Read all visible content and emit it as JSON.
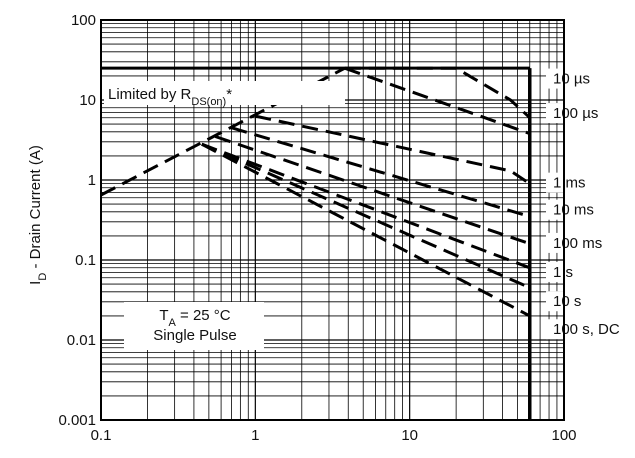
{
  "chart_data": {
    "type": "line",
    "title": "",
    "xlabel": "",
    "ylabel_parts": [
      "I",
      "D",
      " - Drain Current (A)"
    ],
    "x_scale": "log",
    "y_scale": "log",
    "xlim": [
      0.1,
      100
    ],
    "ylim": [
      0.001,
      100
    ],
    "x_ticks": [
      {
        "value": 0.1,
        "label": "0.1"
      },
      {
        "value": 1,
        "label": "1"
      },
      {
        "value": 10,
        "label": "10"
      },
      {
        "value": 100,
        "label": "100"
      }
    ],
    "y_ticks": [
      {
        "value": 100,
        "label": "100"
      },
      {
        "value": 10,
        "label": "10"
      },
      {
        "value": 1,
        "label": "1"
      },
      {
        "value": 0.1,
        "label": "0.1"
      },
      {
        "value": 0.01,
        "label": "0.01"
      },
      {
        "value": 0.001,
        "label": "0.001"
      }
    ],
    "grid": true,
    "limits": {
      "current_limit_A": 25,
      "voltage_limit_V": 60
    },
    "rds_line": [
      [
        0.1,
        0.65
      ],
      [
        3.8,
        25
      ]
    ],
    "series": [
      {
        "name": "10 µs",
        "points": [
          [
            3.8,
            25
          ],
          [
            20,
            25
          ],
          [
            45,
            10
          ],
          [
            60,
            6
          ]
        ]
      },
      {
        "name": "100 µs",
        "points": [
          [
            3.8,
            25
          ],
          [
            60,
            3.8
          ]
        ]
      },
      {
        "name": "1 ms",
        "points": [
          [
            1.0,
            6.3
          ],
          [
            45,
            1.3
          ],
          [
            60,
            0.9
          ]
        ]
      },
      {
        "name": "10 ms",
        "points": [
          [
            0.7,
            4.5
          ],
          [
            60,
            0.35
          ]
        ]
      },
      {
        "name": "100 ms",
        "points": [
          [
            0.55,
            3.5
          ],
          [
            60,
            0.16
          ]
        ]
      },
      {
        "name": "1 s",
        "points": [
          [
            0.45,
            2.8
          ],
          [
            60,
            0.08
          ]
        ]
      },
      {
        "name": "10 s",
        "points": [
          [
            0.45,
            2.8
          ],
          [
            60,
            0.045
          ]
        ]
      },
      {
        "name": "100 s, DC",
        "points": [
          [
            0.45,
            2.8
          ],
          [
            60,
            0.02
          ]
        ]
      }
    ],
    "right_labels": [
      {
        "text": "10 µs",
        "y": 17
      },
      {
        "text": "100 µs",
        "y": 6.3
      },
      {
        "text": "1 ms",
        "y": 0.85
      },
      {
        "text": "10 ms",
        "y": 0.39
      },
      {
        "text": "100 ms",
        "y": 0.15
      },
      {
        "text": "1 s",
        "y": 0.065
      },
      {
        "text": "10 s",
        "y": 0.028
      },
      {
        "text": "100 s, DC",
        "y": 0.0125
      }
    ],
    "annotations": {
      "limited_by": [
        "Limited by R",
        "DS(on)",
        "*"
      ],
      "temp": [
        "T",
        "A",
        " = 25 °C"
      ],
      "pulse": "Single Pulse"
    }
  }
}
